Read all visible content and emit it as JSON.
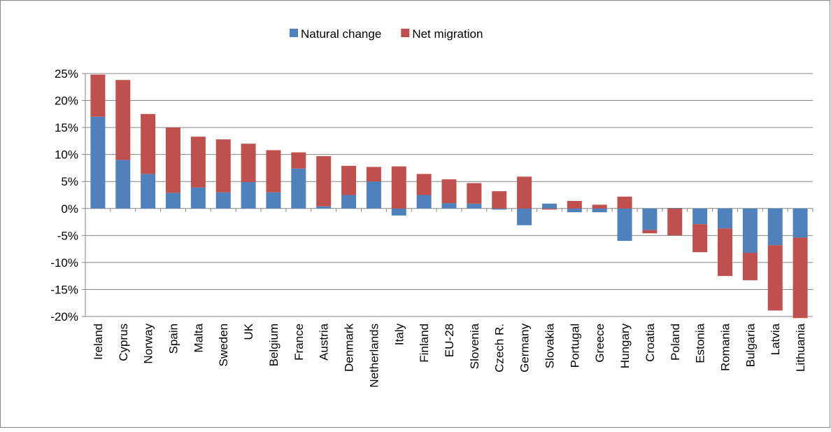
{
  "chart_data": {
    "type": "bar",
    "stacked": true,
    "categories": [
      "Ireland",
      "Cyprus",
      "Norway",
      "Spain",
      "Malta",
      "Sweden",
      "UK",
      "Belgium",
      "France",
      "Austria",
      "Denmark",
      "Netherlands",
      "Italy",
      "Finland",
      "EU-28",
      "Slovenia",
      "Czech R.",
      "Germany",
      "Slovakia",
      "Portugal",
      "Greece",
      "Hungary",
      "Croatia",
      "Poland",
      "Estonia",
      "Romania",
      "Bulgaria",
      "Latvia",
      "Lithuania"
    ],
    "series": [
      {
        "name": "Natural change",
        "color": "#4f81bd",
        "values": [
          17,
          9,
          6.4,
          2.9,
          3.9,
          3.0,
          4.9,
          3.0,
          7.4,
          0.4,
          2.5,
          5.0,
          -1.3,
          2.5,
          1.0,
          0.9,
          -0.2,
          -3.1,
          0.9,
          -0.7,
          -0.7,
          -6.0,
          -4.0,
          0.1,
          -2.9,
          -3.7,
          -8.2,
          -6.8,
          -5.4
        ]
      },
      {
        "name": "Net migration",
        "color": "#c0504d",
        "values": [
          7.8,
          14.8,
          11.1,
          12.1,
          9.4,
          9.8,
          7.1,
          7.8,
          3.0,
          9.3,
          5.4,
          2.7,
          7.8,
          3.9,
          4.4,
          3.8,
          3.2,
          5.9,
          -0.2,
          1.4,
          0.7,
          2.2,
          -0.6,
          -5.0,
          -5.2,
          -8.8,
          -5.1,
          -12.1,
          -14.9
        ]
      }
    ],
    "ylim": [
      -20,
      25
    ],
    "yticks": [
      {
        "value": -20,
        "label": "-20%"
      },
      {
        "value": -15,
        "label": "-15%"
      },
      {
        "value": -10,
        "label": "-10%"
      },
      {
        "value": -5,
        "label": "-5%"
      },
      {
        "value": 0,
        "label": "0%"
      },
      {
        "value": 5,
        "label": "5%"
      },
      {
        "value": 10,
        "label": "10%"
      },
      {
        "value": 15,
        "label": "15%"
      },
      {
        "value": 20,
        "label": "20%"
      },
      {
        "value": 25,
        "label": "25%"
      }
    ],
    "grid": true,
    "legend": "top"
  }
}
